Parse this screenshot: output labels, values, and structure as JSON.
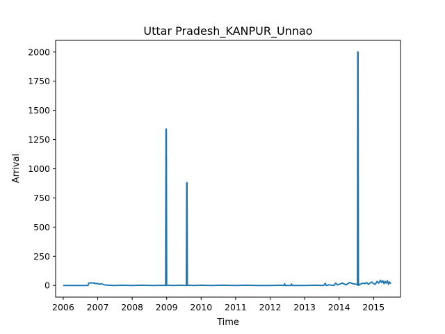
{
  "chart_data": {
    "type": "line",
    "title": "Uttar Pradesh_KANPUR_Unnao",
    "xlabel": "Time",
    "ylabel": "Arrival",
    "xlim": [
      2005.78,
      2015.78
    ],
    "ylim": [
      -100,
      2100
    ],
    "xticks": [
      2006,
      2007,
      2008,
      2009,
      2010,
      2011,
      2012,
      2013,
      2014,
      2015
    ],
    "yticks": [
      0,
      250,
      500,
      750,
      1000,
      1250,
      1500,
      1750,
      2000
    ],
    "grid": false,
    "color": "#1f77b4",
    "series": [
      {
        "x": [
          2006.0,
          2006.2,
          2006.4,
          2006.6,
          2006.72,
          2006.74,
          2006.8,
          2006.9,
          2006.95,
          2007.0,
          2007.05,
          2007.1,
          2007.15,
          2007.2,
          2007.3,
          2007.5,
          2007.7,
          2008.0,
          2008.3,
          2008.6,
          2008.9,
          2008.97,
          2008.98,
          2008.99,
          2009.0,
          2009.01,
          2009.2,
          2009.4,
          2009.57,
          2009.58,
          2009.59,
          2009.6,
          2009.61,
          2009.8,
          2010.0,
          2010.3,
          2010.6,
          2011.0,
          2011.3,
          2011.6,
          2012.0,
          2012.3,
          2012.4,
          2012.42,
          2012.44,
          2012.6,
          2012.62,
          2012.64,
          2013.0,
          2013.3,
          2013.55,
          2013.6,
          2013.62,
          2013.7,
          2013.85,
          2013.9,
          2013.95,
          2014.0,
          2014.1,
          2014.2,
          2014.3,
          2014.4,
          2014.5,
          2014.53,
          2014.54,
          2014.55,
          2014.56,
          2014.6,
          2014.7,
          2014.75,
          2014.8,
          2014.85,
          2014.9,
          2014.95,
          2015.0,
          2015.05,
          2015.1,
          2015.15,
          2015.2,
          2015.23,
          2015.27,
          2015.3,
          2015.33,
          2015.36,
          2015.4,
          2015.43,
          2015.46,
          2015.5
        ],
        "y": [
          0,
          0,
          0,
          0,
          0,
          20,
          22,
          20,
          15,
          18,
          10,
          15,
          10,
          5,
          2,
          0,
          2,
          0,
          2,
          0,
          1,
          0,
          1340,
          1340,
          0,
          2,
          0,
          2,
          0,
          880,
          880,
          0,
          2,
          0,
          2,
          0,
          2,
          0,
          2,
          0,
          0,
          2,
          0,
          15,
          0,
          0,
          12,
          0,
          0,
          2,
          0,
          18,
          0,
          5,
          0,
          20,
          5,
          10,
          20,
          5,
          25,
          15,
          10,
          5,
          2000,
          2000,
          0,
          10,
          20,
          15,
          25,
          10,
          20,
          30,
          15,
          10,
          35,
          20,
          45,
          25,
          40,
          15,
          35,
          20,
          40,
          10,
          30,
          15
        ]
      }
    ]
  }
}
